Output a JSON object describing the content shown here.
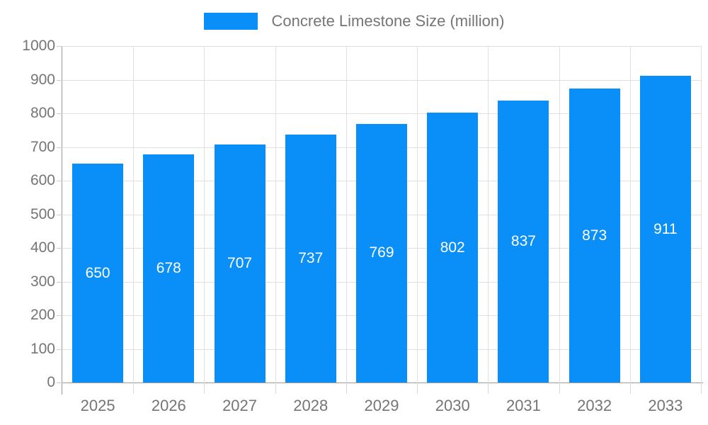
{
  "chart_data": {
    "type": "bar",
    "series_name": "Concrete Limestone Size (million)",
    "categories": [
      "2025",
      "2026",
      "2027",
      "2028",
      "2029",
      "2030",
      "2031",
      "2032",
      "2033"
    ],
    "values": [
      650,
      678,
      707,
      737,
      769,
      802,
      837,
      873,
      911
    ],
    "yticks": [
      0,
      100,
      200,
      300,
      400,
      500,
      600,
      700,
      800,
      900,
      1000
    ],
    "ylim": [
      0,
      1000
    ],
    "xlabel": "",
    "ylabel": "",
    "grid": "on",
    "legend_position": "top-center",
    "value_labels": "inside-center-white",
    "bar_color": "#0a8ff8",
    "value_label_color": "#ffffff",
    "axis_text_color": "#757575",
    "gridline_color": "#e0e0e0",
    "axis_line_color": "#999999"
  }
}
